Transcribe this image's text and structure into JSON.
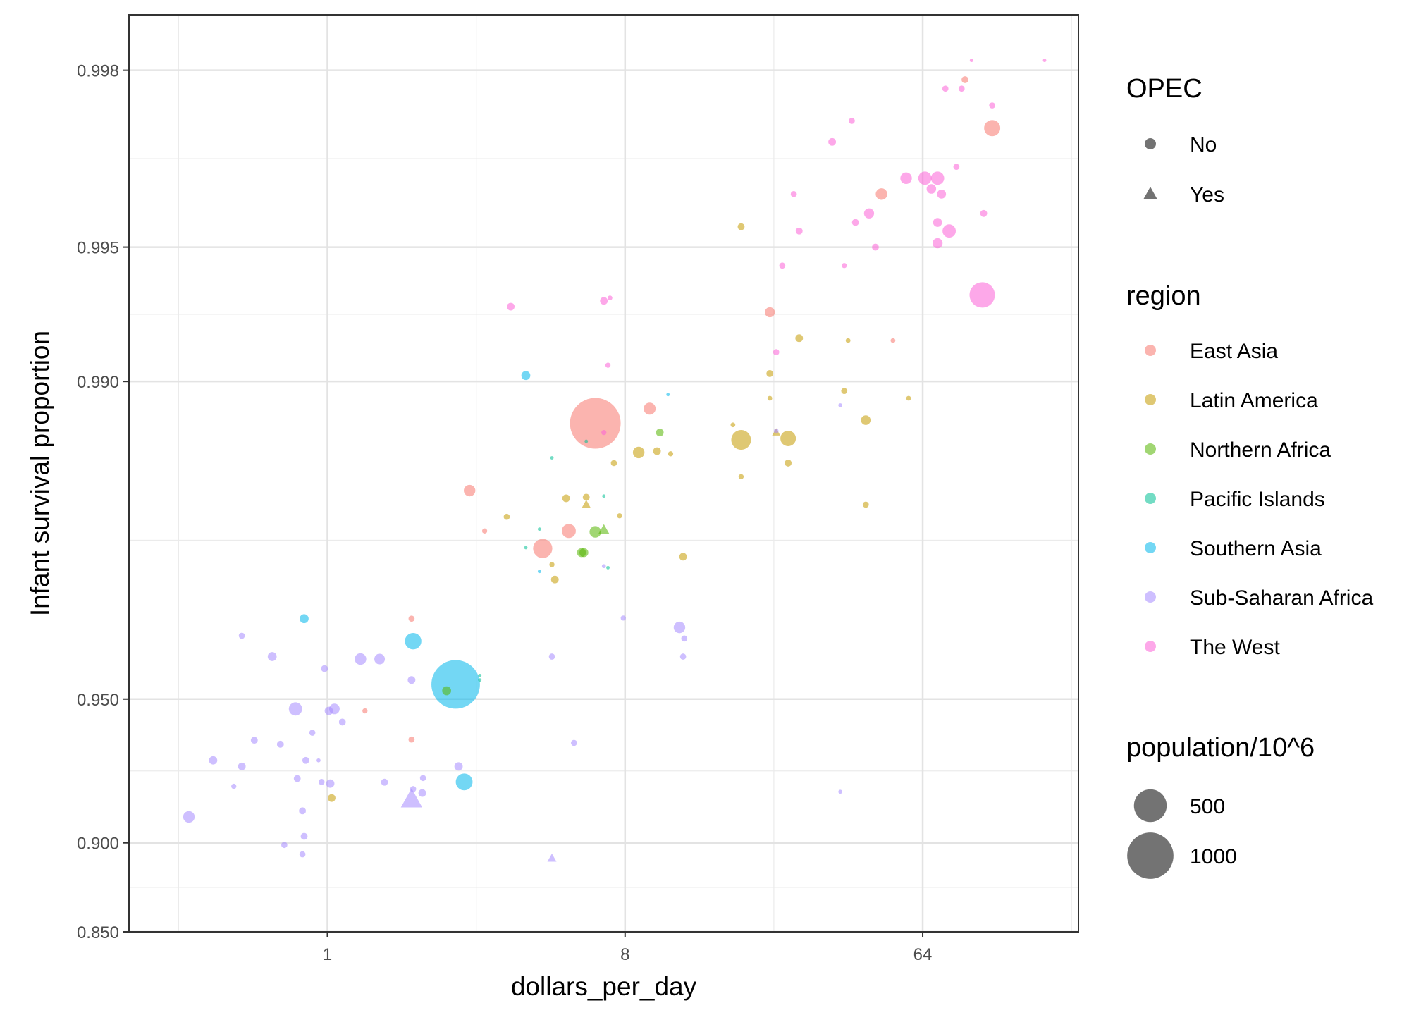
{
  "chart_data": {
    "type": "scatter",
    "xlabel": "dollars_per_day",
    "ylabel": "Infant survival proportion",
    "x_scale": "log2",
    "x_ticks": [
      1,
      8,
      64
    ],
    "x_tick_labels": [
      "1",
      "8",
      "64"
    ],
    "xlim": [
      0.25,
      190
    ],
    "y_scale": "logit",
    "y_ticks": [
      0.85,
      0.9,
      0.95,
      0.99,
      0.995,
      0.998
    ],
    "y_tick_labels": [
      "0.850",
      "0.900",
      "0.950",
      "0.990",
      "0.995",
      "0.998"
    ],
    "ylim": [
      0.85,
      0.9985
    ],
    "grid": true,
    "legend_position": "right",
    "legends": {
      "shape": {
        "title": "OPEC",
        "items": [
          {
            "label": "No",
            "shape": "circle"
          },
          {
            "label": "Yes",
            "shape": "triangle"
          }
        ]
      },
      "color": {
        "title": "region",
        "items": [
          {
            "label": "East Asia",
            "color": "#F8766D"
          },
          {
            "label": "Latin America",
            "color": "#C49A00"
          },
          {
            "label": "Northern Africa",
            "color": "#53B400"
          },
          {
            "label": "Pacific Islands",
            "color": "#00C094"
          },
          {
            "label": "Southern Asia",
            "color": "#00B6EB"
          },
          {
            "label": "Sub-Saharan Africa",
            "color": "#A58AFF"
          },
          {
            "label": "The West",
            "color": "#FB61D7"
          }
        ]
      },
      "size": {
        "title": "population/10^6",
        "items": [
          {
            "label": "500",
            "value": 500
          },
          {
            "label": "1000",
            "value": 1000
          }
        ]
      }
    },
    "series": [
      {
        "name": "East Asia",
        "color": "#F8766D",
        "points": [
          {
            "x": 6.5,
            "y": 0.9876,
            "pop": 1200,
            "opec": "No"
          },
          {
            "x": 9.5,
            "y": 0.9885,
            "pop": 65,
            "opec": "No"
          },
          {
            "x": 2.7,
            "y": 0.9825,
            "pop": 60,
            "opec": "No"
          },
          {
            "x": 3.0,
            "y": 0.9785,
            "pop": 10,
            "opec": "No"
          },
          {
            "x": 4.5,
            "y": 0.9765,
            "pop": 170,
            "opec": "No"
          },
          {
            "x": 5.4,
            "y": 0.9785,
            "pop": 90,
            "opec": "No"
          },
          {
            "x": 1.8,
            "y": 0.9665,
            "pop": 15,
            "opec": "No"
          },
          {
            "x": 1.3,
            "y": 0.947,
            "pop": 10,
            "opec": "No"
          },
          {
            "x": 1.8,
            "y": 0.939,
            "pop": 15,
            "opec": "No"
          },
          {
            "x": 22.0,
            "y": 0.993,
            "pop": 45,
            "opec": "No"
          },
          {
            "x": 48.0,
            "y": 0.9962,
            "pop": 60,
            "opec": "No"
          },
          {
            "x": 52.0,
            "y": 0.9919,
            "pop": 8,
            "opec": "No"
          },
          {
            "x": 86.0,
            "y": 0.9979,
            "pop": 20,
            "opec": "No"
          },
          {
            "x": 104.0,
            "y": 0.9973,
            "pop": 120,
            "opec": "No"
          }
        ]
      },
      {
        "name": "Latin America",
        "color": "#C49A00",
        "points": [
          {
            "x": 18.0,
            "y": 0.9955,
            "pop": 20,
            "opec": "No"
          },
          {
            "x": 27.0,
            "y": 0.992,
            "pop": 25,
            "opec": "No"
          },
          {
            "x": 22.0,
            "y": 0.9904,
            "pop": 20,
            "opec": "No"
          },
          {
            "x": 38.0,
            "y": 0.9919,
            "pop": 8,
            "opec": "No"
          },
          {
            "x": 37.0,
            "y": 0.9895,
            "pop": 15,
            "opec": "No"
          },
          {
            "x": 22.0,
            "y": 0.9891,
            "pop": 8,
            "opec": "No"
          },
          {
            "x": 58.0,
            "y": 0.9891,
            "pop": 8,
            "opec": "No"
          },
          {
            "x": 43.0,
            "y": 0.9878,
            "pop": 40,
            "opec": "No"
          },
          {
            "x": 17.0,
            "y": 0.9875,
            "pop": 8,
            "opec": "No"
          },
          {
            "x": 18.0,
            "y": 0.9865,
            "pop": 180,
            "opec": "No"
          },
          {
            "x": 25.0,
            "y": 0.9866,
            "pop": 110,
            "opec": "No"
          },
          {
            "x": 23.0,
            "y": 0.987,
            "pop": 20,
            "opec": "Yes"
          },
          {
            "x": 8.8,
            "y": 0.9856,
            "pop": 60,
            "opec": "No"
          },
          {
            "x": 10.0,
            "y": 0.9857,
            "pop": 25,
            "opec": "No"
          },
          {
            "x": 11.0,
            "y": 0.9855,
            "pop": 10,
            "opec": "No"
          },
          {
            "x": 25.0,
            "y": 0.9848,
            "pop": 20,
            "opec": "No"
          },
          {
            "x": 7.4,
            "y": 0.9848,
            "pop": 15,
            "opec": "No"
          },
          {
            "x": 18.0,
            "y": 0.9837,
            "pop": 10,
            "opec": "No"
          },
          {
            "x": 5.3,
            "y": 0.9818,
            "pop": 25,
            "opec": "No"
          },
          {
            "x": 6.1,
            "y": 0.9819,
            "pop": 20,
            "opec": "No"
          },
          {
            "x": 6.1,
            "y": 0.9812,
            "pop": 25,
            "opec": "Yes"
          },
          {
            "x": 3.5,
            "y": 0.98,
            "pop": 15,
            "opec": "No"
          },
          {
            "x": 7.7,
            "y": 0.9801,
            "pop": 10,
            "opec": "No"
          },
          {
            "x": 43.0,
            "y": 0.9812,
            "pop": 15,
            "opec": "No"
          },
          {
            "x": 12.0,
            "y": 0.9755,
            "pop": 25,
            "opec": "No"
          },
          {
            "x": 4.8,
            "y": 0.9745,
            "pop": 10,
            "opec": "No"
          },
          {
            "x": 4.9,
            "y": 0.9725,
            "pop": 25,
            "opec": "No"
          },
          {
            "x": 1.03,
            "y": 0.9191,
            "pop": 25,
            "opec": "No"
          }
        ]
      },
      {
        "name": "Northern Africa",
        "color": "#53B400",
        "points": [
          {
            "x": 10.2,
            "y": 0.987,
            "pop": 25,
            "opec": "No"
          },
          {
            "x": 6.5,
            "y": 0.9784,
            "pop": 60,
            "opec": "No"
          },
          {
            "x": 6.9,
            "y": 0.9786,
            "pop": 40,
            "opec": "Yes"
          },
          {
            "x": 5.9,
            "y": 0.976,
            "pop": 35,
            "opec": "No"
          },
          {
            "x": 6.0,
            "y": 0.976,
            "pop": 35,
            "opec": "No"
          },
          {
            "x": 2.3,
            "y": 0.952,
            "pop": 35,
            "opec": "No"
          }
        ]
      },
      {
        "name": "Pacific Islands",
        "color": "#00C094",
        "points": [
          {
            "x": 6.1,
            "y": 0.9864,
            "pop": 3,
            "opec": "No"
          },
          {
            "x": 4.8,
            "y": 0.9852,
            "pop": 3,
            "opec": "No"
          },
          {
            "x": 6.9,
            "y": 0.982,
            "pop": 3,
            "opec": "No"
          },
          {
            "x": 4.4,
            "y": 0.9787,
            "pop": 3,
            "opec": "No"
          },
          {
            "x": 4.0,
            "y": 0.9766,
            "pop": 3,
            "opec": "No"
          },
          {
            "x": 7.1,
            "y": 0.9741,
            "pop": 3,
            "opec": "No"
          },
          {
            "x": 2.9,
            "y": 0.9555,
            "pop": 3,
            "opec": "No"
          },
          {
            "x": 2.9,
            "y": 0.9545,
            "pop": 3,
            "opec": "No"
          }
        ]
      },
      {
        "name": "Southern Asia",
        "color": "#00B6EB",
        "points": [
          {
            "x": 4.0,
            "y": 0.9903,
            "pop": 35,
            "opec": "No"
          },
          {
            "x": 10.8,
            "y": 0.9893,
            "pop": 3,
            "opec": "No"
          },
          {
            "x": 4.4,
            "y": 0.9736,
            "pop": 3,
            "opec": "No"
          },
          {
            "x": 0.85,
            "y": 0.9665,
            "pop": 35,
            "opec": "No"
          },
          {
            "x": 1.82,
            "y": 0.9625,
            "pop": 125,
            "opec": "No"
          },
          {
            "x": 2.45,
            "y": 0.9535,
            "pop": 1100,
            "opec": "No"
          },
          {
            "x": 2.6,
            "y": 0.9251,
            "pop": 130,
            "opec": "No"
          }
        ]
      },
      {
        "name": "Sub-Saharan Africa",
        "color": "#A58AFF",
        "points": [
          {
            "x": 23.0,
            "y": 0.9871,
            "pop": 8,
            "opec": "No"
          },
          {
            "x": 36.0,
            "y": 0.9887,
            "pop": 5,
            "opec": "No"
          },
          {
            "x": 6.9,
            "y": 0.9743,
            "pop": 5,
            "opec": "No"
          },
          {
            "x": 7.9,
            "y": 0.9666,
            "pop": 10,
            "opec": "No"
          },
          {
            "x": 11.7,
            "y": 0.965,
            "pop": 60,
            "opec": "No"
          },
          {
            "x": 12.1,
            "y": 0.963,
            "pop": 15,
            "opec": "No"
          },
          {
            "x": 12.0,
            "y": 0.9595,
            "pop": 15,
            "opec": "No"
          },
          {
            "x": 4.8,
            "y": 0.9595,
            "pop": 15,
            "opec": "No"
          },
          {
            "x": 0.55,
            "y": 0.9635,
            "pop": 15,
            "opec": "No"
          },
          {
            "x": 0.68,
            "y": 0.9595,
            "pop": 35,
            "opec": "No"
          },
          {
            "x": 0.98,
            "y": 0.957,
            "pop": 20,
            "opec": "No"
          },
          {
            "x": 1.26,
            "y": 0.959,
            "pop": 60,
            "opec": "No"
          },
          {
            "x": 1.44,
            "y": 0.959,
            "pop": 50,
            "opec": "No"
          },
          {
            "x": 1.8,
            "y": 0.9545,
            "pop": 25,
            "opec": "No"
          },
          {
            "x": 0.8,
            "y": 0.9475,
            "pop": 80,
            "opec": "No"
          },
          {
            "x": 1.05,
            "y": 0.9475,
            "pop": 50,
            "opec": "No"
          },
          {
            "x": 1.01,
            "y": 0.947,
            "pop": 30,
            "opec": "No"
          },
          {
            "x": 1.11,
            "y": 0.944,
            "pop": 20,
            "opec": "No"
          },
          {
            "x": 0.9,
            "y": 0.941,
            "pop": 15,
            "opec": "No"
          },
          {
            "x": 0.6,
            "y": 0.9388,
            "pop": 20,
            "opec": "No"
          },
          {
            "x": 0.72,
            "y": 0.9376,
            "pop": 20,
            "opec": "No"
          },
          {
            "x": 0.94,
            "y": 0.9325,
            "pop": 5,
            "opec": "No"
          },
          {
            "x": 0.86,
            "y": 0.9325,
            "pop": 20,
            "opec": "No"
          },
          {
            "x": 0.55,
            "y": 0.9305,
            "pop": 25,
            "opec": "No"
          },
          {
            "x": 0.45,
            "y": 0.9325,
            "pop": 30,
            "opec": "No"
          },
          {
            "x": 2.5,
            "y": 0.9305,
            "pop": 30,
            "opec": "No"
          },
          {
            "x": 0.81,
            "y": 0.9263,
            "pop": 20,
            "opec": "No"
          },
          {
            "x": 0.96,
            "y": 0.9251,
            "pop": 15,
            "opec": "No"
          },
          {
            "x": 1.02,
            "y": 0.9245,
            "pop": 30,
            "opec": "No"
          },
          {
            "x": 1.49,
            "y": 0.925,
            "pop": 20,
            "opec": "No"
          },
          {
            "x": 1.95,
            "y": 0.9265,
            "pop": 15,
            "opec": "No"
          },
          {
            "x": 0.52,
            "y": 0.9235,
            "pop": 10,
            "opec": "No"
          },
          {
            "x": 1.82,
            "y": 0.9225,
            "pop": 15,
            "opec": "No"
          },
          {
            "x": 1.94,
            "y": 0.921,
            "pop": 25,
            "opec": "No"
          },
          {
            "x": 1.8,
            "y": 0.9185,
            "pop": 150,
            "opec": "Yes"
          },
          {
            "x": 0.84,
            "y": 0.914,
            "pop": 20,
            "opec": "No"
          },
          {
            "x": 0.38,
            "y": 0.9115,
            "pop": 60,
            "opec": "No"
          },
          {
            "x": 0.85,
            "y": 0.903,
            "pop": 20,
            "opec": "No"
          },
          {
            "x": 0.74,
            "y": 0.899,
            "pop": 15,
            "opec": "No"
          },
          {
            "x": 0.84,
            "y": 0.8945,
            "pop": 15,
            "opec": "No"
          },
          {
            "x": 4.8,
            "y": 0.8925,
            "pop": 25,
            "opec": "Yes"
          },
          {
            "x": 5.6,
            "y": 0.938,
            "pop": 15,
            "opec": "No"
          },
          {
            "x": 36.0,
            "y": 0.9215,
            "pop": 5,
            "opec": "No"
          }
        ]
      },
      {
        "name": "The West",
        "color": "#FB61D7",
        "points": [
          {
            "x": 90.0,
            "y": 0.9981,
            "pop": 3,
            "opec": "No"
          },
          {
            "x": 150.0,
            "y": 0.9981,
            "pop": 3,
            "opec": "No"
          },
          {
            "x": 84.0,
            "y": 0.9978,
            "pop": 15,
            "opec": "No"
          },
          {
            "x": 75.0,
            "y": 0.9978,
            "pop": 15,
            "opec": "No"
          },
          {
            "x": 104.0,
            "y": 0.9976,
            "pop": 15,
            "opec": "No"
          },
          {
            "x": 39.0,
            "y": 0.9974,
            "pop": 15,
            "opec": "No"
          },
          {
            "x": 34.0,
            "y": 0.9971,
            "pop": 25,
            "opec": "No"
          },
          {
            "x": 81.0,
            "y": 0.9967,
            "pop": 15,
            "opec": "No"
          },
          {
            "x": 57.0,
            "y": 0.9965,
            "pop": 60,
            "opec": "No"
          },
          {
            "x": 65.0,
            "y": 0.9965,
            "pop": 80,
            "opec": "No"
          },
          {
            "x": 71.0,
            "y": 0.9965,
            "pop": 80,
            "opec": "No"
          },
          {
            "x": 68.0,
            "y": 0.9963,
            "pop": 40,
            "opec": "No"
          },
          {
            "x": 73.0,
            "y": 0.9962,
            "pop": 35,
            "opec": "No"
          },
          {
            "x": 26.0,
            "y": 0.9962,
            "pop": 15,
            "opec": "No"
          },
          {
            "x": 44.0,
            "y": 0.9958,
            "pop": 45,
            "opec": "No"
          },
          {
            "x": 98.0,
            "y": 0.9958,
            "pop": 20,
            "opec": "No"
          },
          {
            "x": 40.0,
            "y": 0.9956,
            "pop": 20,
            "opec": "No"
          },
          {
            "x": 71.0,
            "y": 0.9956,
            "pop": 35,
            "opec": "No"
          },
          {
            "x": 77.0,
            "y": 0.9954,
            "pop": 80,
            "opec": "No"
          },
          {
            "x": 27.0,
            "y": 0.9954,
            "pop": 20,
            "opec": "No"
          },
          {
            "x": 71.0,
            "y": 0.9951,
            "pop": 45,
            "opec": "No"
          },
          {
            "x": 46.0,
            "y": 0.995,
            "pop": 20,
            "opec": "No"
          },
          {
            "x": 24.0,
            "y": 0.9945,
            "pop": 15,
            "opec": "No"
          },
          {
            "x": 37.0,
            "y": 0.9945,
            "pop": 10,
            "opec": "No"
          },
          {
            "x": 97.0,
            "y": 0.9936,
            "pop": 300,
            "opec": "No"
          },
          {
            "x": 3.6,
            "y": 0.9932,
            "pop": 25,
            "opec": "No"
          },
          {
            "x": 6.9,
            "y": 0.9934,
            "pop": 25,
            "opec": "No"
          },
          {
            "x": 7.2,
            "y": 0.9935,
            "pop": 8,
            "opec": "No"
          },
          {
            "x": 23.0,
            "y": 0.9914,
            "pop": 15,
            "opec": "No"
          },
          {
            "x": 7.1,
            "y": 0.9908,
            "pop": 10,
            "opec": "No"
          },
          {
            "x": 6.9,
            "y": 0.987,
            "pop": 10,
            "opec": "No"
          }
        ]
      }
    ]
  }
}
